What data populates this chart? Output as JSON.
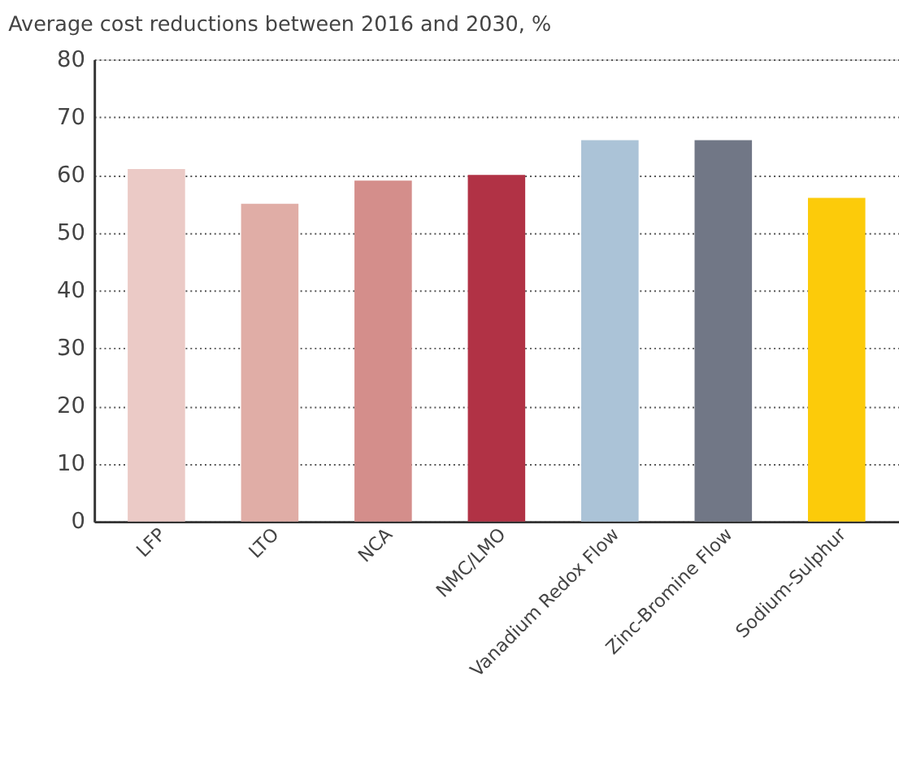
{
  "chart_data": {
    "type": "bar",
    "title": "Average cost reductions between 2016 and 2030, %",
    "categories": [
      "LFP",
      "LTO",
      "NCA",
      "NMC/LMO",
      "Vanadium Redox Flow",
      "Zinc-Bromine Flow",
      "Sodium-Sulphur"
    ],
    "values": [
      61,
      55,
      59,
      60,
      66,
      66,
      56
    ],
    "colors": [
      "#ebcac6",
      "#e0ada6",
      "#d48e8b",
      "#b13245",
      "#abc3d7",
      "#717786",
      "#fccb0a"
    ],
    "ylim": [
      0,
      80
    ],
    "yticks": [
      0,
      10,
      20,
      30,
      40,
      50,
      60,
      70,
      80
    ],
    "grid": "y"
  }
}
